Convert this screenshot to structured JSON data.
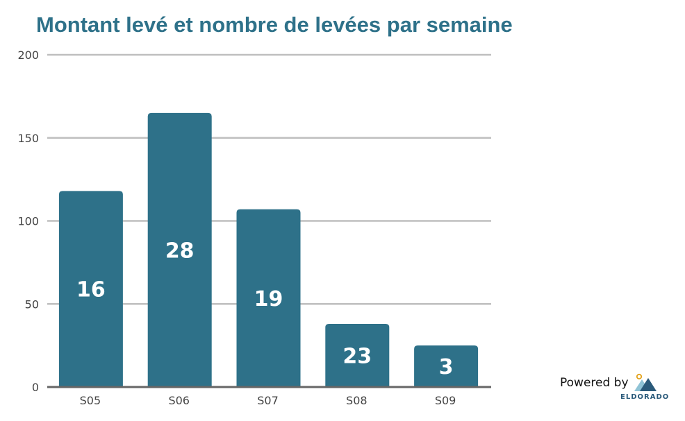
{
  "chart_data": {
    "type": "bar",
    "title": "Montant levé et nombre de levées par semaine",
    "categories": [
      "S05",
      "S06",
      "S07",
      "S08",
      "S09"
    ],
    "values": [
      118,
      165,
      107,
      38,
      25
    ],
    "data_labels": [
      "16",
      "28",
      "19",
      "23",
      "3"
    ],
    "ylim": [
      0,
      200
    ],
    "yticks": [
      "0",
      "50",
      "100",
      "150",
      "200"
    ],
    "ytick_values": [
      0,
      50,
      100,
      150,
      200
    ],
    "grid": true,
    "bar_color": "#2e7189",
    "grid_color": "#bfbfbf"
  },
  "footer": {
    "powered_by": "Powered by",
    "brand": "ELDORADO",
    "logo_icon": "mountain-logo-icon"
  }
}
